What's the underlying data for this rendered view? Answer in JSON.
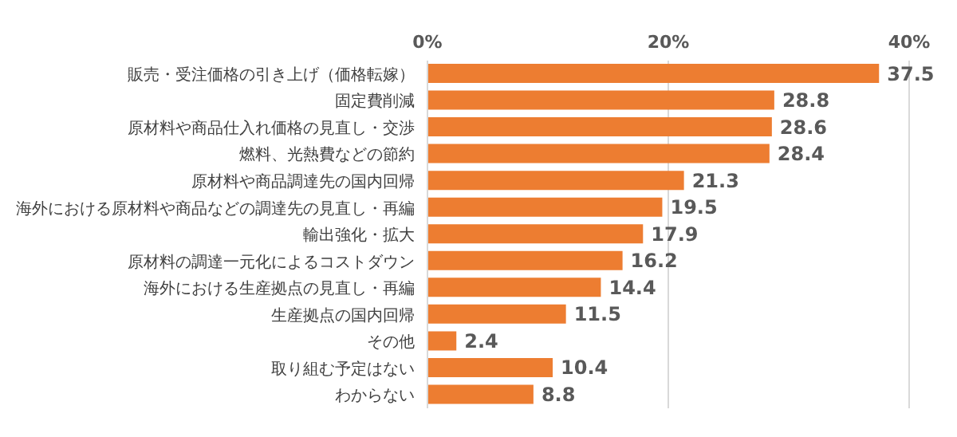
{
  "chart_data": {
    "type": "bar",
    "orientation": "horizontal",
    "categories": [
      "販売・受注価格の引き上げ（価格転嫁）",
      "固定費削減",
      "原材料や商品仕入れ価格の見直し・交渉",
      "燃料、光熱費などの節約",
      "原材料や商品調達先の国内回帰",
      "海外における原材料や商品などの調達先の見直し・再編",
      "輸出強化・拡大",
      "原材料の調達一元化によるコストダウン",
      "海外における生産拠点の見直し・再編",
      "生産拠点の国内回帰",
      "その他",
      "取り組む予定はない",
      "わからない"
    ],
    "values": [
      37.5,
      28.8,
      28.6,
      28.4,
      21.3,
      19.5,
      17.9,
      16.2,
      14.4,
      11.5,
      2.4,
      10.4,
      8.8
    ],
    "color": "#ed7d31",
    "xlim": [
      0,
      40
    ],
    "xticks": [
      {
        "value": 0,
        "label": "0%"
      },
      {
        "value": 20,
        "label": "20%"
      },
      {
        "value": 40,
        "label": "40%"
      }
    ],
    "grid": "x",
    "data_labels": true
  }
}
